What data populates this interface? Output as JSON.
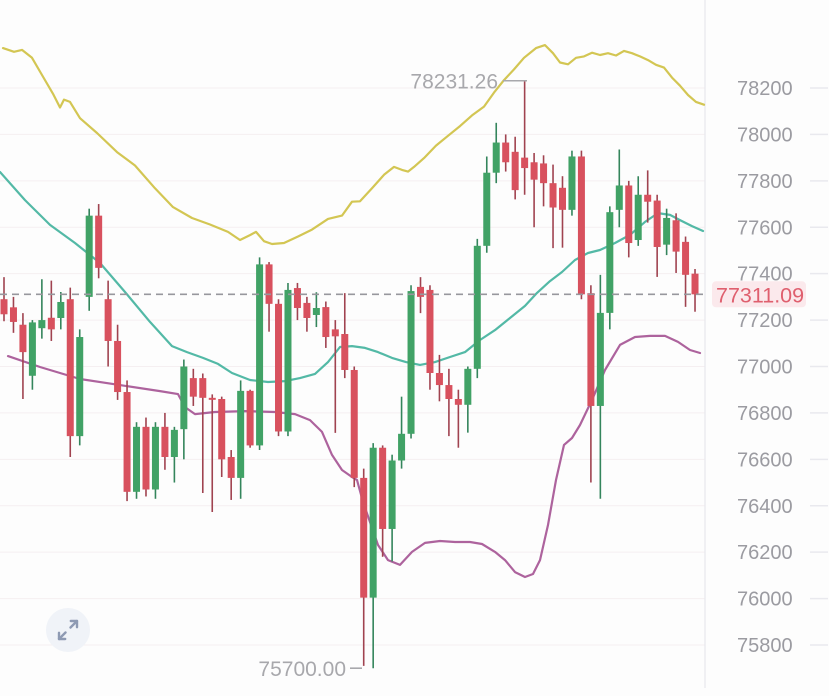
{
  "chart_data": {
    "type": "candlestick",
    "title": "",
    "legend_position": "none",
    "grid": "faint-horizontal",
    "y_axis": {
      "side": "right",
      "tick_labels": [
        "78200",
        "78000",
        "77800",
        "77600",
        "77400",
        "77200",
        "77000",
        "76800",
        "76600",
        "76400",
        "76200",
        "76000",
        "75800"
      ],
      "tick_prices": [
        78200,
        78000,
        77800,
        77600,
        77400,
        77200,
        77000,
        76800,
        76600,
        76400,
        76200,
        76000,
        75800
      ],
      "ylim": [
        75600,
        78450
      ]
    },
    "scale_calibration": {
      "price_a": 78200,
      "y_a": 88,
      "price_b": 75800,
      "y_b": 645,
      "plot_right": 705
    },
    "candles": {
      "x_start": 4,
      "pitch": 9.466,
      "body_width": 7,
      "ohlc": [
        [
          77290,
          77385,
          77195,
          77225
        ],
        [
          77255,
          77300,
          77145,
          77192
        ],
        [
          77180,
          77230,
          76860,
          77062
        ],
        [
          76960,
          77200,
          76900,
          77190
        ],
        [
          77165,
          77376,
          77120,
          77200
        ],
        [
          77210,
          77370,
          77110,
          77160
        ],
        [
          77209,
          77321,
          77160,
          77278
        ],
        [
          77290,
          77340,
          76610,
          76700
        ],
        [
          76700,
          77160,
          76660,
          77127
        ],
        [
          77300,
          77680,
          77240,
          77650
        ],
        [
          77650,
          77700,
          77380,
          77425
        ],
        [
          77290,
          77370,
          77000,
          77110
        ],
        [
          77110,
          77180,
          76856,
          76890
        ],
        [
          76890,
          76940,
          76420,
          76460
        ],
        [
          76460,
          76760,
          76430,
          76740
        ],
        [
          76740,
          76780,
          76440,
          76470
        ],
        [
          76470,
          76760,
          76430,
          76740
        ],
        [
          76740,
          76800,
          76555,
          76610
        ],
        [
          76610,
          76740,
          76500,
          76727
        ],
        [
          76730,
          77030,
          76600,
          77000
        ],
        [
          76950,
          76990,
          76830,
          76870
        ],
        [
          76950,
          76970,
          76455,
          76865
        ],
        [
          76865,
          76880,
          76373,
          76860
        ],
        [
          76860,
          76870,
          76524,
          76600
        ],
        [
          76610,
          76640,
          76425,
          76520
        ],
        [
          76520,
          76940,
          76430,
          76895
        ],
        [
          76895,
          76900,
          76650,
          76660
        ],
        [
          76660,
          77470,
          76640,
          77440
        ],
        [
          77440,
          77450,
          77150,
          77270
        ],
        [
          77270,
          77290,
          76700,
          76720
        ],
        [
          76720,
          77360,
          76700,
          77330
        ],
        [
          77338,
          77360,
          77200,
          77252
        ],
        [
          77274,
          77300,
          77150,
          77209
        ],
        [
          77222,
          77320,
          77170,
          77252
        ],
        [
          77256,
          77280,
          77080,
          77127
        ],
        [
          77160,
          77200,
          76714,
          77130
        ],
        [
          77140,
          77316,
          76950,
          76985
        ],
        [
          76985,
          77000,
          76480,
          76520
        ],
        [
          76520,
          76560,
          75710,
          76004
        ],
        [
          76004,
          76670,
          75700,
          76650
        ],
        [
          76650,
          76660,
          76180,
          76300
        ],
        [
          76300,
          76620,
          76160,
          76595
        ],
        [
          76595,
          76870,
          76560,
          76710
        ],
        [
          76710,
          77350,
          76690,
          77325
        ],
        [
          77343,
          77385,
          77230,
          77300
        ],
        [
          77330,
          77350,
          76900,
          76972
        ],
        [
          76972,
          77050,
          76850,
          76920
        ],
        [
          76920,
          76990,
          76700,
          76860
        ],
        [
          76860,
          76900,
          76650,
          76835
        ],
        [
          76835,
          77000,
          76715,
          76990
        ],
        [
          76990,
          77550,
          76950,
          77520
        ],
        [
          77520,
          77905,
          77490,
          77835
        ],
        [
          77835,
          78050,
          77790,
          77965
        ],
        [
          77965,
          78000,
          77840,
          77880
        ],
        [
          77925,
          77990,
          77720,
          77760
        ],
        [
          77900,
          78231,
          77740,
          77855
        ],
        [
          77880,
          77920,
          77600,
          77805
        ],
        [
          77875,
          77910,
          77690,
          77790
        ],
        [
          77790,
          77870,
          77510,
          77685
        ],
        [
          77770,
          77820,
          77512,
          77675
        ],
        [
          77675,
          77930,
          77650,
          77905
        ],
        [
          77905,
          77930,
          77290,
          77311
        ],
        [
          77316,
          77350,
          76500,
          76830
        ],
        [
          76830,
          77395,
          76430,
          77231
        ],
        [
          77231,
          77690,
          77160,
          77665
        ],
        [
          77675,
          77935,
          77600,
          77780
        ],
        [
          77780,
          77800,
          77470,
          77532
        ],
        [
          77545,
          77820,
          77520,
          77740
        ],
        [
          77740,
          77845,
          77620,
          77710
        ],
        [
          77715,
          77740,
          77386,
          77515
        ],
        [
          77525,
          77680,
          77480,
          77640
        ],
        [
          77630,
          77660,
          77403,
          77495
        ],
        [
          77537,
          77560,
          77257,
          77395
        ],
        [
          77400,
          77420,
          77236,
          77311
        ]
      ]
    },
    "series": [
      {
        "name": "upper-band",
        "color": "#d3c653",
        "points": [
          [
            3,
            78372
          ],
          [
            14,
            78356
          ],
          [
            22,
            78364
          ],
          [
            32,
            78330
          ],
          [
            42,
            78256
          ],
          [
            53,
            78175
          ],
          [
            60,
            78116
          ],
          [
            64,
            78150
          ],
          [
            70,
            78140
          ],
          [
            80,
            78070
          ],
          [
            97,
            78006
          ],
          [
            117,
            77924
          ],
          [
            135,
            77866
          ],
          [
            155,
            77768
          ],
          [
            173,
            77687
          ],
          [
            192,
            77640
          ],
          [
            210,
            77612
          ],
          [
            228,
            77580
          ],
          [
            240,
            77545
          ],
          [
            250,
            77566
          ],
          [
            256,
            77580
          ],
          [
            264,
            77540
          ],
          [
            272,
            77528
          ],
          [
            284,
            77532
          ],
          [
            298,
            77560
          ],
          [
            312,
            77590
          ],
          [
            328,
            77636
          ],
          [
            342,
            77650
          ],
          [
            352,
            77710
          ],
          [
            360,
            77712
          ],
          [
            372,
            77768
          ],
          [
            384,
            77826
          ],
          [
            394,
            77860
          ],
          [
            402,
            77847
          ],
          [
            408,
            77840
          ],
          [
            414,
            77860
          ],
          [
            424,
            77898
          ],
          [
            436,
            77952
          ],
          [
            448,
            77994
          ],
          [
            460,
            78036
          ],
          [
            472,
            78082
          ],
          [
            484,
            78120
          ],
          [
            494,
            78180
          ],
          [
            504,
            78234
          ],
          [
            514,
            78280
          ],
          [
            524,
            78330
          ],
          [
            536,
            78372
          ],
          [
            545,
            78385
          ],
          [
            553,
            78350
          ],
          [
            560,
            78310
          ],
          [
            568,
            78302
          ],
          [
            576,
            78330
          ],
          [
            584,
            78336
          ],
          [
            592,
            78352
          ],
          [
            600,
            78342
          ],
          [
            608,
            78350
          ],
          [
            616,
            78340
          ],
          [
            624,
            78360
          ],
          [
            632,
            78350
          ],
          [
            640,
            78336
          ],
          [
            648,
            78320
          ],
          [
            656,
            78300
          ],
          [
            664,
            78288
          ],
          [
            672,
            78245
          ],
          [
            680,
            78210
          ],
          [
            688,
            78170
          ],
          [
            696,
            78140
          ],
          [
            704,
            78128
          ]
        ]
      },
      {
        "name": "middle-band",
        "color": "#53b9a6",
        "points": [
          [
            0,
            77838
          ],
          [
            25,
            77717
          ],
          [
            50,
            77610
          ],
          [
            75,
            77532
          ],
          [
            100,
            77446
          ],
          [
            125,
            77321
          ],
          [
            150,
            77192
          ],
          [
            172,
            77088
          ],
          [
            187,
            77062
          ],
          [
            203,
            77037
          ],
          [
            218,
            77011
          ],
          [
            232,
            76972
          ],
          [
            250,
            76942
          ],
          [
            268,
            76933
          ],
          [
            285,
            76937
          ],
          [
            300,
            76950
          ],
          [
            315,
            76968
          ],
          [
            328,
            77019
          ],
          [
            340,
            77084
          ],
          [
            352,
            77088
          ],
          [
            365,
            77080
          ],
          [
            378,
            77062
          ],
          [
            392,
            77037
          ],
          [
            406,
            77019
          ],
          [
            420,
            77007
          ],
          [
            435,
            77019
          ],
          [
            450,
            77041
          ],
          [
            465,
            77062
          ],
          [
            480,
            77114
          ],
          [
            495,
            77157
          ],
          [
            510,
            77209
          ],
          [
            525,
            77261
          ],
          [
            537,
            77317
          ],
          [
            550,
            77368
          ],
          [
            562,
            77407
          ],
          [
            575,
            77459
          ],
          [
            588,
            77489
          ],
          [
            600,
            77502
          ],
          [
            615,
            77532
          ],
          [
            630,
            77567
          ],
          [
            645,
            77623
          ],
          [
            658,
            77661
          ],
          [
            670,
            77653
          ],
          [
            680,
            77631
          ],
          [
            692,
            77605
          ],
          [
            703,
            77584
          ]
        ]
      },
      {
        "name": "lower-band",
        "color": "#ad639d",
        "points": [
          [
            8,
            77045
          ],
          [
            40,
            76998
          ],
          [
            80,
            76946
          ],
          [
            120,
            76920
          ],
          [
            160,
            76894
          ],
          [
            178,
            76881
          ],
          [
            185,
            76825
          ],
          [
            195,
            76795
          ],
          [
            215,
            76804
          ],
          [
            245,
            76808
          ],
          [
            275,
            76804
          ],
          [
            295,
            76795
          ],
          [
            310,
            76769
          ],
          [
            322,
            76718
          ],
          [
            332,
            76619
          ],
          [
            342,
            76554
          ],
          [
            352,
            76524
          ],
          [
            357,
            76511
          ],
          [
            363,
            76416
          ],
          [
            370,
            76330
          ],
          [
            378,
            76231
          ],
          [
            388,
            76166
          ],
          [
            400,
            76145
          ],
          [
            412,
            76201
          ],
          [
            425,
            76240
          ],
          [
            440,
            76248
          ],
          [
            455,
            76244
          ],
          [
            470,
            76244
          ],
          [
            482,
            76235
          ],
          [
            495,
            76201
          ],
          [
            505,
            76166
          ],
          [
            515,
            76114
          ],
          [
            525,
            76093
          ],
          [
            533,
            76106
          ],
          [
            540,
            76166
          ],
          [
            548,
            76317
          ],
          [
            556,
            76511
          ],
          [
            564,
            76662
          ],
          [
            572,
            76692
          ],
          [
            580,
            76748
          ],
          [
            592,
            76856
          ],
          [
            605,
            76985
          ],
          [
            620,
            77093
          ],
          [
            635,
            77127
          ],
          [
            650,
            77132
          ],
          [
            665,
            77132
          ],
          [
            678,
            77106
          ],
          [
            690,
            77071
          ],
          [
            700,
            77058
          ]
        ]
      }
    ],
    "annotations": {
      "high_label": "78231.26",
      "high_price": 78231.26,
      "low_label": "75700.00",
      "low_price": 75700.0,
      "last_price_label": "77311.09",
      "last_price": 77311.09
    },
    "colors": {
      "candle_up": "#41a266",
      "candle_up_wick": "#34855c",
      "candle_down": "#d8515e",
      "candle_down_wick": "#a04350",
      "upper_band": "#d3c653",
      "middle_band": "#53b9a6",
      "lower_band": "#ad639d",
      "axis_text": "#9b9ba1",
      "annotation_text": "#a8a8ac",
      "last_price_text": "#df5f6e",
      "last_price_bg": "#fbe9ec",
      "dashed_line": "#97979d",
      "gridline": "#f5eff1",
      "axis_divider": "#e9e9ee",
      "icon_color": "#8e9ab3"
    }
  },
  "controls": {
    "expand_icon": "expand-arrows"
  }
}
